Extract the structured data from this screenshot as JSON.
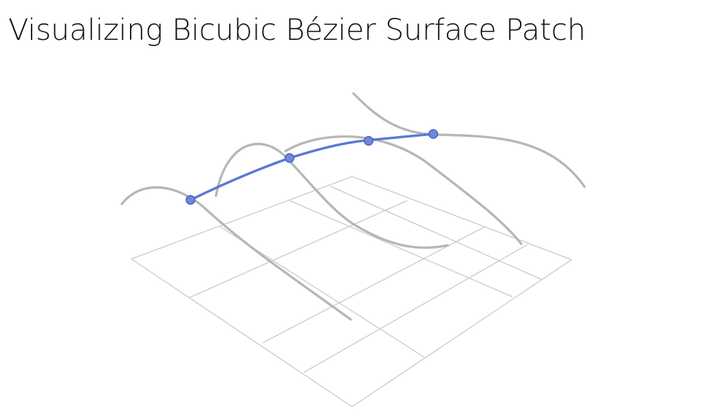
{
  "slide": {
    "title": "Visualizing Bicubic Bézier Surface Patch"
  },
  "diagram": {
    "grid_size": 4,
    "curve_color": "#b6b6b6",
    "highlight_color": "#5a78d6",
    "point_fill": "#6f89d8",
    "point_stroke": "#4562c4",
    "grid_color": "#c8c8c8"
  }
}
